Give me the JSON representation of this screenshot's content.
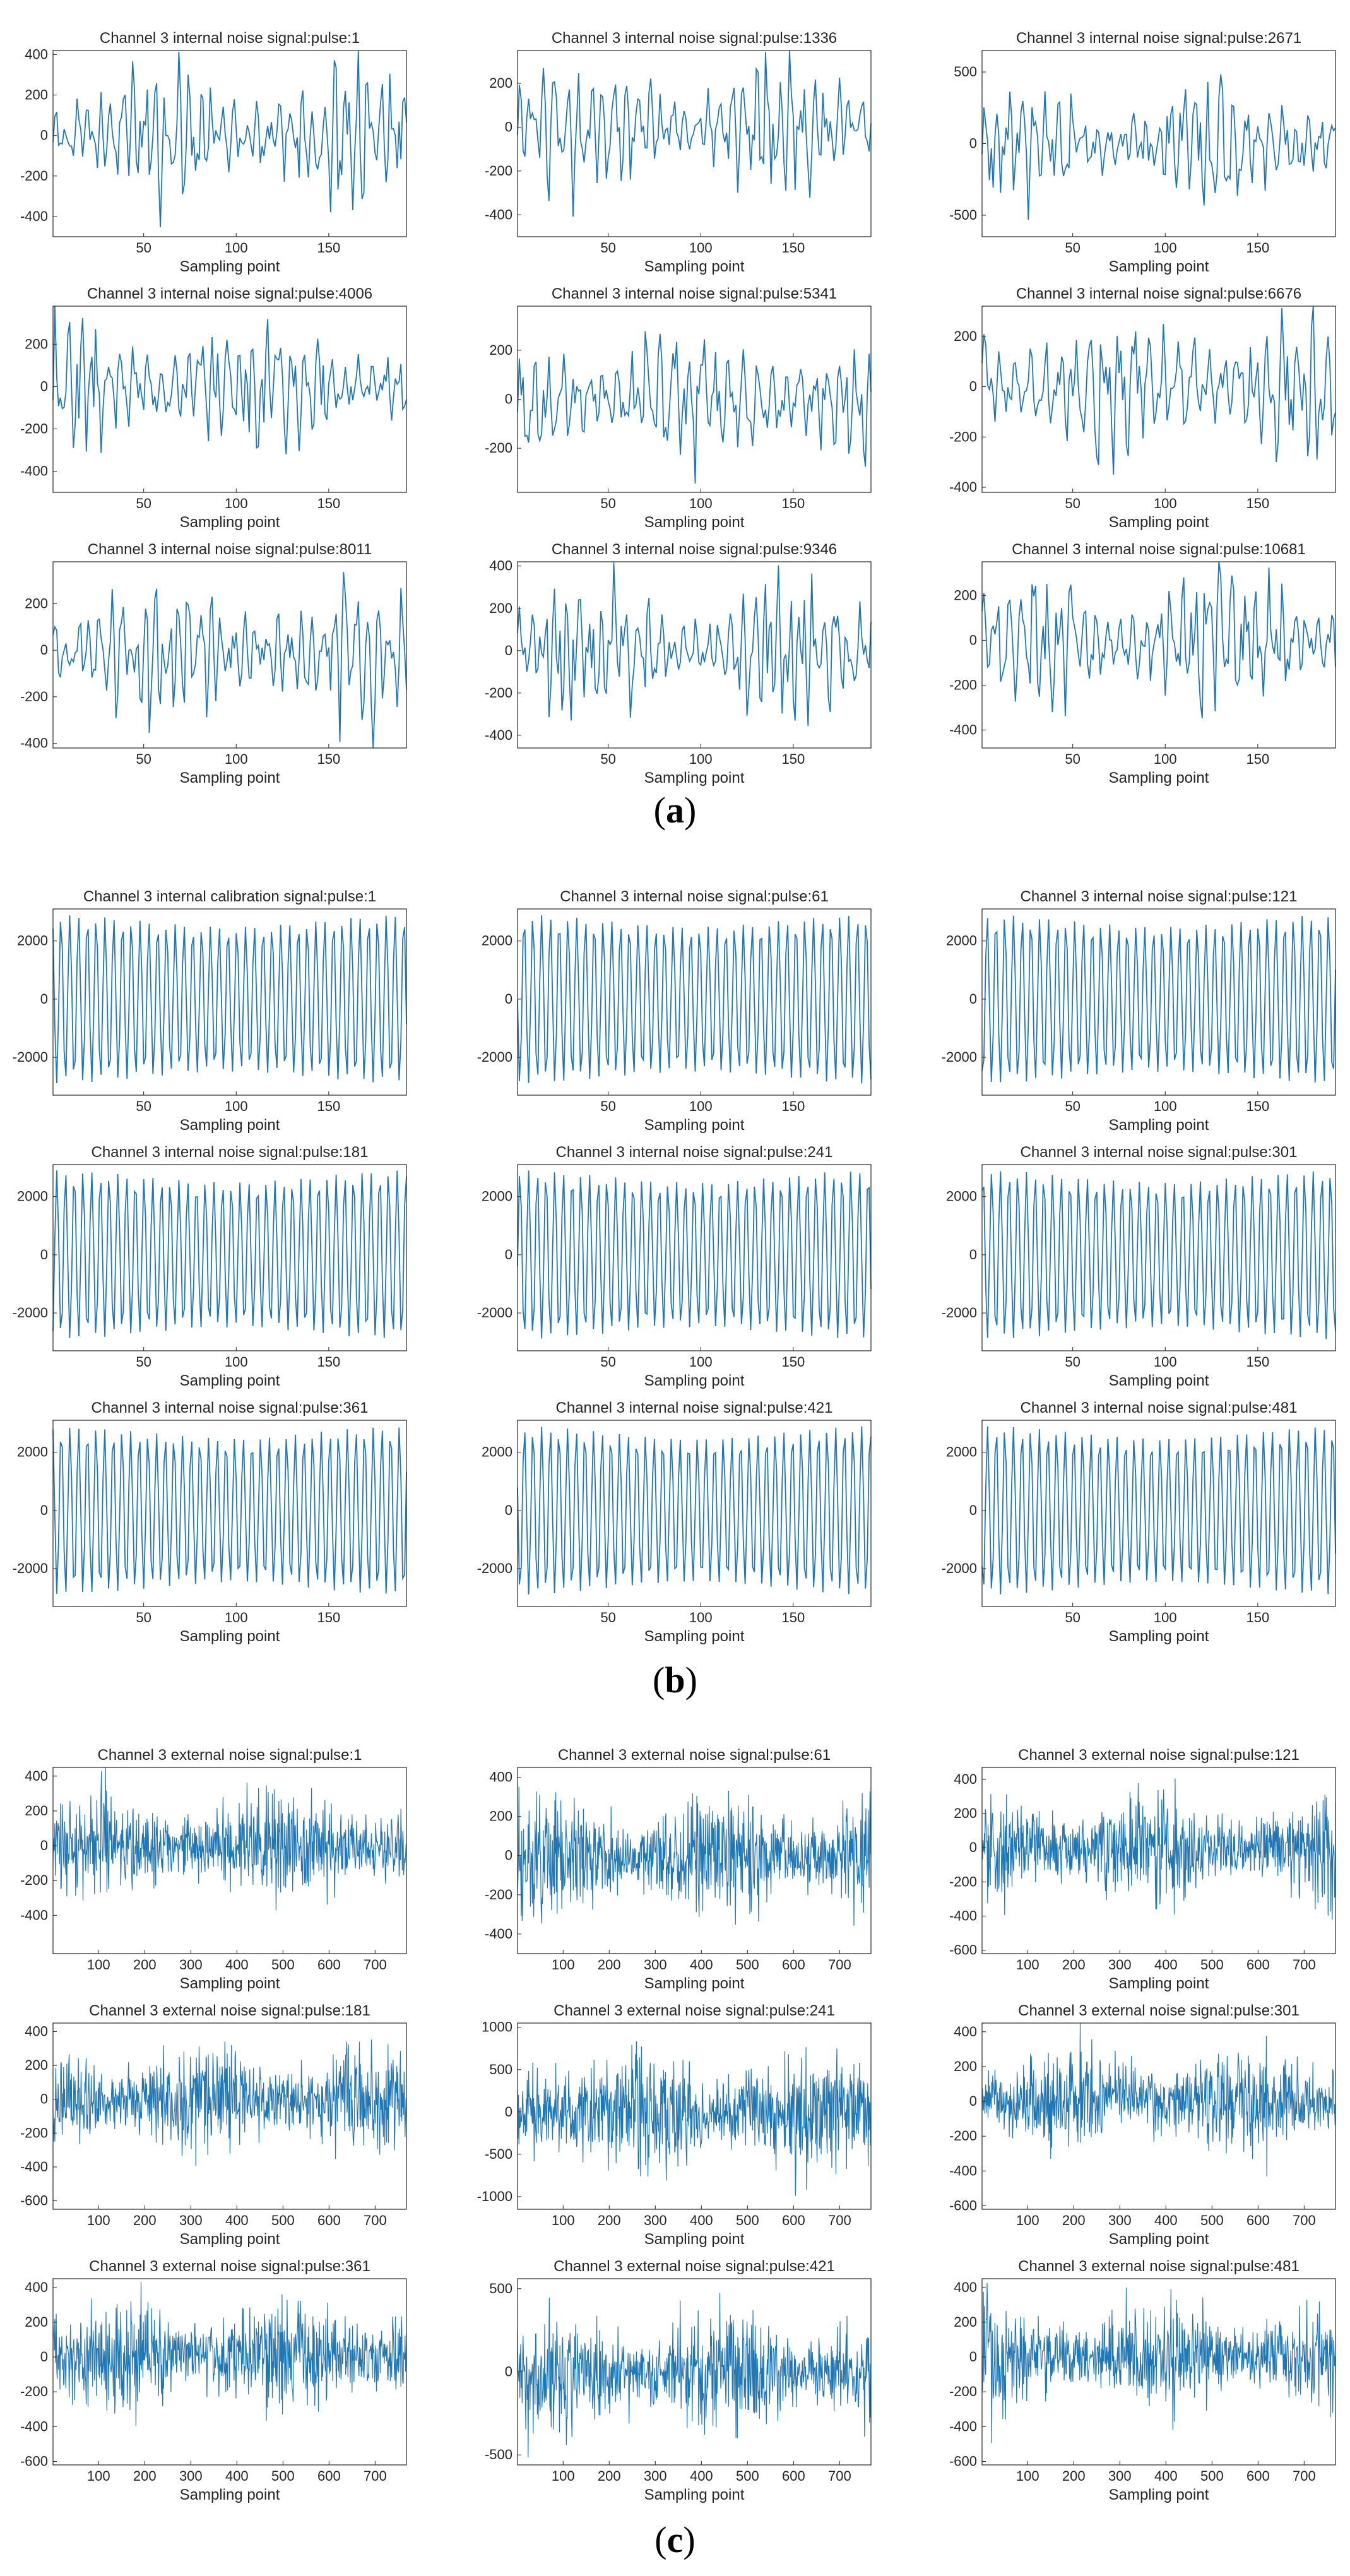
{
  "figure": {
    "labels": [
      "(a)",
      "(b)",
      "(c)"
    ],
    "xlabel": "Sampling point",
    "line_color": "#1f77b4"
  },
  "chart_data": [
    {
      "type": "line",
      "panel": "a",
      "title": "Channel 3 internal noise signal:pulse:1",
      "xlabel": "Sampling point",
      "xlim": [
        1,
        192
      ],
      "ylim": [
        -500,
        420
      ],
      "xticks": [
        50,
        100,
        150
      ],
      "yticks": [
        -400,
        -200,
        0,
        200,
        400
      ],
      "amplitude": 380,
      "n": 192,
      "seed": 11,
      "description": "noise signal"
    },
    {
      "type": "line",
      "panel": "a",
      "title": "Channel 3 internal noise signal:pulse:1336",
      "xlabel": "Sampling point",
      "xlim": [
        1,
        192
      ],
      "ylim": [
        -500,
        350
      ],
      "xticks": [
        50,
        100,
        150
      ],
      "yticks": [
        -400,
        -200,
        0,
        200
      ],
      "amplitude": 320,
      "n": 192,
      "seed": 12,
      "description": "noise signal"
    },
    {
      "type": "line",
      "panel": "a",
      "title": "Channel 3 internal noise signal:pulse:2671",
      "xlabel": "Sampling point",
      "xlim": [
        1,
        192
      ],
      "ylim": [
        -650,
        650
      ],
      "xticks": [
        50,
        100,
        150
      ],
      "yticks": [
        -500,
        0,
        500
      ],
      "amplitude": 450,
      "n": 192,
      "seed": 13,
      "description": "noise signal"
    },
    {
      "type": "line",
      "panel": "a",
      "title": "Channel 3 internal noise signal:pulse:4006",
      "xlabel": "Sampling point",
      "xlim": [
        1,
        192
      ],
      "ylim": [
        -500,
        380
      ],
      "xticks": [
        50,
        100,
        150
      ],
      "yticks": [
        -400,
        -200,
        0,
        200
      ],
      "amplitude": 340,
      "n": 192,
      "seed": 14,
      "description": "noise signal"
    },
    {
      "type": "line",
      "panel": "a",
      "title": "Channel 3 internal noise signal:pulse:5341",
      "xlabel": "Sampling point",
      "xlim": [
        1,
        192
      ],
      "ylim": [
        -380,
        380
      ],
      "xticks": [
        50,
        100,
        150
      ],
      "yticks": [
        -200,
        0,
        200
      ],
      "amplitude": 320,
      "n": 192,
      "seed": 15,
      "description": "noise signal"
    },
    {
      "type": "line",
      "panel": "a",
      "title": "Channel 3 internal noise signal:pulse:6676",
      "xlabel": "Sampling point",
      "xlim": [
        1,
        192
      ],
      "ylim": [
        -420,
        320
      ],
      "xticks": [
        50,
        100,
        150
      ],
      "yticks": [
        -400,
        -200,
        0,
        200
      ],
      "amplitude": 330,
      "n": 192,
      "seed": 16,
      "description": "noise signal"
    },
    {
      "type": "line",
      "panel": "a",
      "title": "Channel 3 internal noise signal:pulse:8011",
      "xlabel": "Sampling point",
      "xlim": [
        1,
        192
      ],
      "ylim": [
        -420,
        380
      ],
      "xticks": [
        50,
        100,
        150
      ],
      "yticks": [
        -400,
        -200,
        0,
        200
      ],
      "amplitude": 340,
      "n": 192,
      "seed": 17,
      "description": "noise signal"
    },
    {
      "type": "line",
      "panel": "a",
      "title": "Channel 3 internal noise signal:pulse:9346",
      "xlabel": "Sampling point",
      "xlim": [
        1,
        192
      ],
      "ylim": [
        -460,
        420
      ],
      "xticks": [
        50,
        100,
        150
      ],
      "yticks": [
        -400,
        -200,
        0,
        200,
        400
      ],
      "amplitude": 360,
      "n": 192,
      "seed": 18,
      "description": "noise signal"
    },
    {
      "type": "line",
      "panel": "a",
      "title": "Channel 3 internal noise signal:pulse:10681",
      "xlabel": "Sampling point",
      "xlim": [
        1,
        192
      ],
      "ylim": [
        -480,
        350
      ],
      "xticks": [
        50,
        100,
        150
      ],
      "yticks": [
        -400,
        -200,
        0,
        200
      ],
      "amplitude": 360,
      "n": 192,
      "seed": 19,
      "description": "noise signal"
    },
    {
      "type": "line",
      "panel": "b",
      "title": "Channel 3 internal calibration signal:pulse:1",
      "xlabel": "Sampling point",
      "xlim": [
        1,
        192
      ],
      "ylim": [
        -3300,
        3100
      ],
      "xticks": [
        50,
        100,
        150
      ],
      "yticks": [
        -2000,
        0,
        2000
      ],
      "amplitude": 2900,
      "n": 192,
      "seed": 21,
      "description": "periodic calibration signal"
    },
    {
      "type": "line",
      "panel": "b",
      "title": "Channel 3 internal noise signal:pulse:61",
      "xlabel": "Sampling point",
      "xlim": [
        1,
        192
      ],
      "ylim": [
        -3300,
        3100
      ],
      "xticks": [
        50,
        100,
        150
      ],
      "yticks": [
        -2000,
        0,
        2000
      ],
      "amplitude": 2900,
      "n": 192,
      "seed": 22,
      "description": "periodic calibration signal"
    },
    {
      "type": "line",
      "panel": "b",
      "title": "Channel 3 internal noise signal:pulse:121",
      "xlabel": "Sampling point",
      "xlim": [
        1,
        192
      ],
      "ylim": [
        -3300,
        3100
      ],
      "xticks": [
        50,
        100,
        150
      ],
      "yticks": [
        -2000,
        0,
        2000
      ],
      "amplitude": 2900,
      "n": 192,
      "seed": 23,
      "description": "periodic calibration signal"
    },
    {
      "type": "line",
      "panel": "b",
      "title": "Channel 3 internal noise signal:pulse:181",
      "xlabel": "Sampling point",
      "xlim": [
        1,
        192
      ],
      "ylim": [
        -3300,
        3100
      ],
      "xticks": [
        50,
        100,
        150
      ],
      "yticks": [
        -2000,
        0,
        2000
      ],
      "amplitude": 2900,
      "n": 192,
      "seed": 24,
      "description": "periodic calibration signal"
    },
    {
      "type": "line",
      "panel": "b",
      "title": "Channel 3 internal noise signal:pulse:241",
      "xlabel": "Sampling point",
      "xlim": [
        1,
        192
      ],
      "ylim": [
        -3300,
        3100
      ],
      "xticks": [
        50,
        100,
        150
      ],
      "yticks": [
        -2000,
        0,
        2000
      ],
      "amplitude": 2900,
      "n": 192,
      "seed": 25,
      "description": "periodic calibration signal"
    },
    {
      "type": "line",
      "panel": "b",
      "title": "Channel 3 internal noise signal:pulse:301",
      "xlabel": "Sampling point",
      "xlim": [
        1,
        192
      ],
      "ylim": [
        -3300,
        3100
      ],
      "xticks": [
        50,
        100,
        150
      ],
      "yticks": [
        -2000,
        0,
        2000
      ],
      "amplitude": 2900,
      "n": 192,
      "seed": 26,
      "description": "periodic calibration signal"
    },
    {
      "type": "line",
      "panel": "b",
      "title": "Channel 3 internal noise signal:pulse:361",
      "xlabel": "Sampling point",
      "xlim": [
        1,
        192
      ],
      "ylim": [
        -3300,
        3100
      ],
      "xticks": [
        50,
        100,
        150
      ],
      "yticks": [
        -2000,
        0,
        2000
      ],
      "amplitude": 2900,
      "n": 192,
      "seed": 27,
      "description": "periodic calibration signal"
    },
    {
      "type": "line",
      "panel": "b",
      "title": "Channel 3 internal noise signal:pulse:421",
      "xlabel": "Sampling point",
      "xlim": [
        1,
        192
      ],
      "ylim": [
        -3300,
        3100
      ],
      "xticks": [
        50,
        100,
        150
      ],
      "yticks": [
        -2000,
        0,
        2000
      ],
      "amplitude": 2900,
      "n": 192,
      "seed": 28,
      "description": "periodic calibration signal"
    },
    {
      "type": "line",
      "panel": "b",
      "title": "Channel 3 internal noise signal:pulse:481",
      "xlabel": "Sampling point",
      "xlim": [
        1,
        192
      ],
      "ylim": [
        -3300,
        3100
      ],
      "xticks": [
        50,
        100,
        150
      ],
      "yticks": [
        -2000,
        0,
        2000
      ],
      "amplitude": 2900,
      "n": 192,
      "seed": 29,
      "description": "periodic calibration signal"
    },
    {
      "type": "line",
      "panel": "c",
      "title": "Channel 3 external noise signal:pulse:1",
      "xlabel": "Sampling point",
      "xlim": [
        1,
        768
      ],
      "ylim": [
        -620,
        450
      ],
      "xticks": [
        100,
        200,
        300,
        400,
        500,
        600,
        700
      ],
      "yticks": [
        -400,
        -200,
        0,
        200,
        400
      ],
      "amplitude": 320,
      "n": 768,
      "seed": 31,
      "description": "dense noise signal"
    },
    {
      "type": "line",
      "panel": "c",
      "title": "Channel 3 external noise signal:pulse:61",
      "xlabel": "Sampling point",
      "xlim": [
        1,
        768
      ],
      "ylim": [
        -500,
        450
      ],
      "xticks": [
        100,
        200,
        300,
        400,
        500,
        600,
        700
      ],
      "yticks": [
        -400,
        -200,
        0,
        200,
        400
      ],
      "amplitude": 320,
      "n": 768,
      "seed": 32,
      "description": "dense noise signal"
    },
    {
      "type": "line",
      "panel": "c",
      "title": "Channel 3 external noise signal:pulse:121",
      "xlabel": "Sampling point",
      "xlim": [
        1,
        768
      ],
      "ylim": [
        -620,
        470
      ],
      "xticks": [
        100,
        200,
        300,
        400,
        500,
        600,
        700
      ],
      "yticks": [
        -600,
        -400,
        -200,
        0,
        200,
        400
      ],
      "amplitude": 330,
      "n": 768,
      "seed": 33,
      "description": "dense noise signal"
    },
    {
      "type": "line",
      "panel": "c",
      "title": "Channel 3 external noise signal:pulse:181",
      "xlabel": "Sampling point",
      "xlim": [
        1,
        768
      ],
      "ylim": [
        -650,
        450
      ],
      "xticks": [
        100,
        200,
        300,
        400,
        500,
        600,
        700
      ],
      "yticks": [
        -600,
        -400,
        -200,
        0,
        200,
        400
      ],
      "amplitude": 340,
      "n": 768,
      "seed": 34,
      "description": "dense noise signal"
    },
    {
      "type": "line",
      "panel": "c",
      "title": "Channel 3 external noise signal:pulse:241",
      "xlabel": "Sampling point",
      "xlim": [
        1,
        768
      ],
      "ylim": [
        -1150,
        1050
      ],
      "xticks": [
        100,
        200,
        300,
        400,
        500,
        600,
        700
      ],
      "yticks": [
        -1000,
        -500,
        0,
        500,
        1000
      ],
      "amplitude": 800,
      "n": 768,
      "seed": 35,
      "description": "dense noise signal"
    },
    {
      "type": "line",
      "panel": "c",
      "title": "Channel 3 external noise signal:pulse:301",
      "xlabel": "Sampling point",
      "xlim": [
        1,
        768
      ],
      "ylim": [
        -620,
        450
      ],
      "xticks": [
        100,
        200,
        300,
        400,
        500,
        600,
        700
      ],
      "yticks": [
        -600,
        -400,
        -200,
        0,
        200,
        400
      ],
      "amplitude": 330,
      "n": 768,
      "seed": 36,
      "description": "dense noise signal"
    },
    {
      "type": "line",
      "panel": "c",
      "title": "Channel 3 external noise signal:pulse:361",
      "xlabel": "Sampling point",
      "xlim": [
        1,
        768
      ],
      "ylim": [
        -620,
        450
      ],
      "xticks": [
        100,
        200,
        300,
        400,
        500,
        600,
        700
      ],
      "yticks": [
        -600,
        -400,
        -200,
        0,
        200,
        400
      ],
      "amplitude": 330,
      "n": 768,
      "seed": 37,
      "description": "dense noise signal"
    },
    {
      "type": "line",
      "panel": "c",
      "title": "Channel 3 external noise signal:pulse:421",
      "xlabel": "Sampling point",
      "xlim": [
        1,
        768
      ],
      "ylim": [
        -560,
        560
      ],
      "xticks": [
        100,
        200,
        300,
        400,
        500,
        600,
        700
      ],
      "yticks": [
        -500,
        0,
        500
      ],
      "amplitude": 380,
      "n": 768,
      "seed": 38,
      "description": "dense noise signal"
    },
    {
      "type": "line",
      "panel": "c",
      "title": "Channel 3 external noise signal:pulse:481",
      "xlabel": "Sampling point",
      "xlim": [
        1,
        768
      ],
      "ylim": [
        -620,
        450
      ],
      "xticks": [
        100,
        200,
        300,
        400,
        500,
        600,
        700
      ],
      "yticks": [
        -600,
        -400,
        -200,
        0,
        200,
        400
      ],
      "amplitude": 330,
      "n": 768,
      "seed": 39,
      "description": "dense noise signal"
    }
  ]
}
